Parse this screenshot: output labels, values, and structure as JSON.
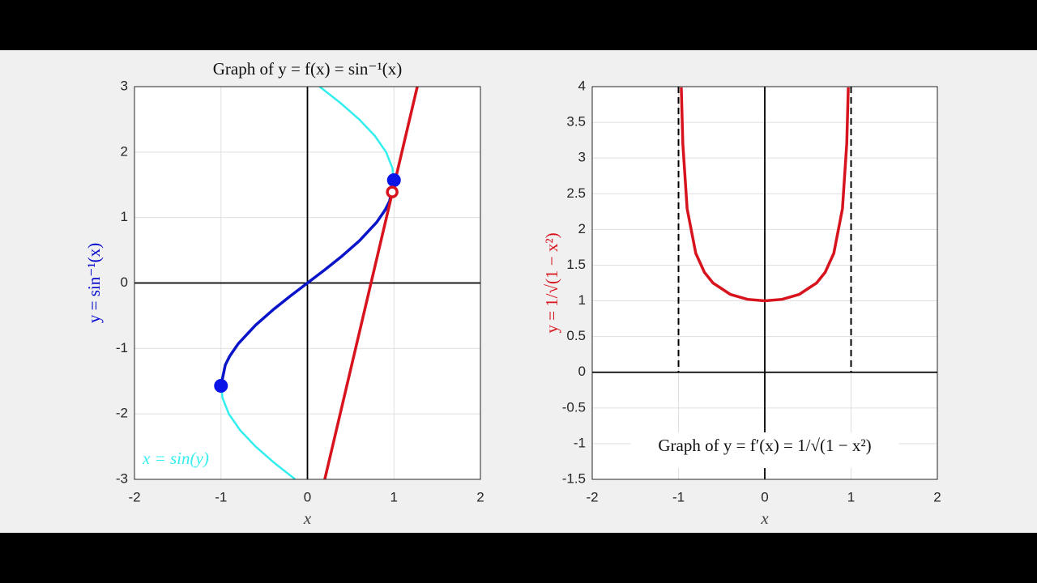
{
  "chart_data": [
    {
      "type": "line",
      "title": "Graph of y = f(x) = sin⁻¹(x)",
      "xlabel": "x",
      "ylabel": "y = sin⁻¹(x)",
      "ylabel_color": "#0000cc",
      "xlim": [
        -2,
        2
      ],
      "ylim": [
        -3,
        3
      ],
      "xticks": [
        -2,
        -1,
        0,
        1,
        2
      ],
      "yticks": [
        -3,
        -2,
        -1,
        0,
        1,
        2,
        3
      ],
      "grid": true,
      "series": [
        {
          "name": "x = sin(y)",
          "color": "#33eeee",
          "x": [
            -0.141,
            -0.382,
            -0.598,
            -0.778,
            -0.909,
            -0.984,
            -0.997,
            -0.949,
            -0.841,
            -0.682,
            -0.479,
            -0.247,
            0,
            0.247,
            0.479,
            0.682,
            0.841,
            0.949,
            0.997,
            0.984,
            0.909,
            0.778,
            0.598,
            0.382,
            0.141
          ],
          "values": [
            -3,
            -2.75,
            -2.5,
            -2.25,
            -2,
            -1.75,
            -1.5,
            -1.25,
            -1,
            -0.75,
            -0.5,
            -0.25,
            0,
            0.25,
            0.5,
            0.75,
            1,
            1.25,
            1.5,
            1.75,
            2,
            2.25,
            2.5,
            2.75,
            3
          ]
        },
        {
          "color": "#0a14c8",
          "x": [
            -1,
            -0.95,
            -0.9,
            -0.8,
            -0.6,
            -0.4,
            -0.2,
            0,
            0.2,
            0.4,
            0.6,
            0.8,
            0.9,
            0.95,
            1
          ],
          "values": [
            -1.571,
            -1.253,
            -1.12,
            -0.927,
            -0.644,
            -0.412,
            -0.201,
            0,
            0.201,
            0.412,
            0.644,
            0.927,
            1.12,
            1.253,
            1.571
          ]
        },
        {
          "color": "#d7141e",
          "x": [
            0.2,
            1.27
          ],
          "values": [
            -3,
            3
          ]
        },
        {
          "color": "#0a14e6",
          "style": "markers",
          "x": [
            -1,
            1
          ],
          "values": [
            -1.571,
            1.571
          ]
        },
        {
          "color": "#d7141e",
          "style": "open-markers",
          "x": [
            0.98
          ],
          "values": [
            1.39
          ]
        }
      ]
    },
    {
      "type": "line",
      "annotation": "Graph of y = f′(x) = 1/√(1 − x²)",
      "xlabel": "x",
      "ylabel": "y = 1/√(1 − x²)",
      "ylabel_color": "#d7141e",
      "xlim": [
        -2,
        2
      ],
      "ylim": [
        -1.5,
        4
      ],
      "xticks": [
        -2,
        -1,
        0,
        1,
        2
      ],
      "yticks": [
        -1.5,
        -1,
        -0.5,
        0,
        0.5,
        1,
        1.5,
        2,
        2.5,
        3,
        3.5,
        4
      ],
      "grid": true,
      "asymptotes": [
        -1,
        1
      ],
      "series": [
        {
          "color": "#d7141e",
          "x": [
            -0.968,
            -0.95,
            -0.9,
            -0.8,
            -0.7,
            -0.6,
            -0.4,
            -0.2,
            0,
            0.2,
            0.4,
            0.6,
            0.7,
            0.8,
            0.9,
            0.95,
            0.968
          ],
          "values": [
            3.99,
            3.2,
            2.29,
            1.667,
            1.4,
            1.25,
            1.091,
            1.021,
            1,
            1.021,
            1.091,
            1.25,
            1.4,
            1.667,
            2.29,
            3.2,
            3.99
          ]
        }
      ]
    }
  ]
}
